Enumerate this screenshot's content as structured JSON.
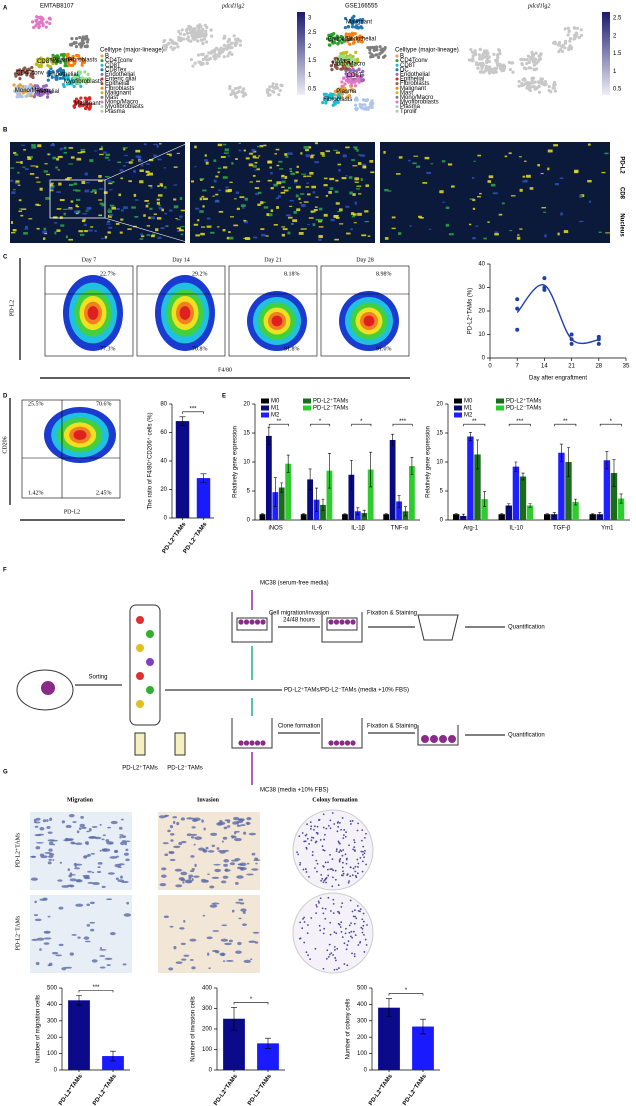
{
  "panels": {
    "letters": [
      "A",
      "B",
      "C",
      "D",
      "E",
      "F",
      "G"
    ]
  },
  "umap": [
    {
      "title": "EMTAB8107",
      "legend_title": "Celltype (major-lineage)",
      "legend_items": [
        "B",
        "CD4Tconv",
        "CD8T",
        "CD8Tex",
        "Endothelial",
        "Enteric glial",
        "Epithelial",
        "Fibroblasts",
        "Malignant",
        "Mast",
        "Mono/Macro",
        "Myofibroblasts",
        "Plasma"
      ],
      "cluster_labels": [
        "Mono/Macro",
        "Plasma",
        "Myofibroblasts",
        "Endothelial",
        "Epithelial",
        "Malignant",
        "CD4Tconv",
        "Fibroblasts",
        "CD8Tex"
      ]
    },
    {
      "title": "GSE166555",
      "legend_title": "Celltype (major-lineage)",
      "legend_items": [
        "B",
        "CD4Tconv",
        "CD8T",
        "DC",
        "Endothelial",
        "Epithelial",
        "Fibroblasts",
        "Malignant",
        "Mast",
        "Mono/Macro",
        "Myofibroblasts",
        "Plasma",
        "Tprolif"
      ],
      "cluster_labels": [
        "Plasma",
        "Epithelial",
        "Fibroblasts",
        "Malignant",
        "CD8T",
        "Mast",
        "Mono/Macro",
        "Endothelial"
      ]
    }
  ],
  "feature": [
    {
      "title": "pdcd1lg2",
      "colorbar_ticks": [
        3,
        2.5,
        2,
        1.5,
        1,
        0.5
      ]
    },
    {
      "title": "pdcd1lg2",
      "colorbar_ticks": [
        2.5,
        2,
        1.5,
        1,
        0.5
      ]
    }
  ],
  "if_channels": [
    "PD-L2",
    "CD8",
    "Nucleus"
  ],
  "flow_c": {
    "days": [
      "Day 7",
      "Day 14",
      "Day 21",
      "Day 28"
    ],
    "upper": [
      "22.7%",
      "29.2%",
      "8.18%",
      "8.98%"
    ],
    "lower": [
      "77.3%",
      "70.8%",
      "91.8%",
      "91.0%"
    ],
    "y_axis": "PD-L2",
    "x_axis": "F4/80"
  },
  "flow_d": {
    "quadrants": [
      "25.5%",
      "70.6%",
      "1.42%",
      "2.45%"
    ],
    "y_axis": "CD206",
    "x_axis": "PD-L2"
  },
  "schematic": {
    "sorting": "Sorting",
    "mix": "PD-L2⁺TAMs/PD-L2⁻TAMs (media +10% FBS)",
    "top_media": "MC38 (serum-free media)",
    "bottom_media": "MC38 (media +10% FBS)",
    "migration_step": [
      "Cell migration/invasion",
      "24/48 hours"
    ],
    "clone_step": "Clone formation",
    "fixation": [
      "Fixation & Staining",
      "Fixation & Staining"
    ],
    "quantification": [
      "Quantification",
      "Quantification"
    ],
    "tubes": [
      "PD-L2⁺TAMs",
      "PD-L2⁻TAMs"
    ]
  },
  "assay": {
    "columns": [
      "Migration",
      "Invasion",
      "Colony formation"
    ],
    "rows": [
      "PD-L2⁺TAMs",
      "PD-L2⁻TAMs"
    ]
  },
  "chart_data": [
    {
      "type": "scatter",
      "ylabel": "PD-L2⁺TAMs (%)",
      "xlabel": "Day after engraftment",
      "color": "#1f3fa8",
      "x": [
        7,
        7,
        7,
        14,
        14,
        14,
        21,
        21,
        21,
        28,
        28,
        28
      ],
      "values": [
        25,
        21,
        12,
        34,
        30,
        29,
        10,
        6,
        8,
        9,
        8,
        6
      ],
      "xlim": [
        0,
        35
      ],
      "xticks": [
        0,
        7,
        14,
        21,
        28,
        35
      ],
      "ylim": [
        0,
        40
      ],
      "yticks": [
        0,
        10,
        20,
        30,
        40
      ]
    },
    {
      "type": "bar",
      "ylabel": "The ratio of F4/80⁺CD206⁺ cells (%)",
      "categories": [
        "PD-L2⁺TAMs",
        "PD-L2⁻TAMs"
      ],
      "values": [
        68,
        28
      ],
      "errors": [
        3,
        3
      ],
      "colors": [
        "#0a0a8a",
        "#1a1aff"
      ],
      "significance": "***",
      "ylim": [
        0,
        80
      ],
      "yticks": [
        0,
        20,
        40,
        60,
        80
      ]
    },
    {
      "type": "grouped_bar",
      "ylabel": "Relatively gene expression",
      "categories": [
        "iNOS",
        "IL-6",
        "IL-1β",
        "TNF-α"
      ],
      "series": [
        {
          "name": "M0",
          "color": "#000000",
          "values": [
            1,
            1,
            1,
            1
          ],
          "errors": [
            0.1,
            0.1,
            0.1,
            0.1
          ]
        },
        {
          "name": "M1",
          "color": "#0a0a80",
          "values": [
            14.5,
            7,
            7.8,
            13.8
          ],
          "errors": [
            1.5,
            1.8,
            2.5,
            1
          ]
        },
        {
          "name": "M2",
          "color": "#1f1fff",
          "values": [
            4.8,
            3.5,
            1.5,
            3.2
          ],
          "errors": [
            2.5,
            2,
            0.6,
            1
          ]
        },
        {
          "name": "PD-L2⁺TAMs",
          "color": "#1a6b1a",
          "values": [
            5.6,
            2.6,
            1.2,
            1.5
          ],
          "errors": [
            0.8,
            1,
            0.5,
            0.8
          ]
        },
        {
          "name": "PD-L2⁻TAMs",
          "color": "#2ecc2e",
          "values": [
            9.7,
            8.5,
            8.7,
            9.3
          ],
          "errors": [
            1.5,
            3,
            3,
            1.5
          ]
        }
      ],
      "significance": [
        "**",
        "*",
        "*",
        "***"
      ],
      "ylim": [
        0,
        20
      ],
      "yticks": [
        0,
        5,
        10,
        15,
        20
      ]
    },
    {
      "type": "grouped_bar",
      "ylabel": "Relatively gene expression",
      "categories": [
        "Arg-1",
        "IL-10",
        "TGF-β",
        "Ym1"
      ],
      "series": [
        {
          "name": "M0",
          "color": "#000000",
          "values": [
            1,
            1,
            1,
            1
          ],
          "errors": [
            0.1,
            0.1,
            0.1,
            0.1
          ]
        },
        {
          "name": "M1",
          "color": "#0a0a80",
          "values": [
            0.7,
            2.5,
            1,
            1
          ],
          "errors": [
            0.3,
            0.3,
            0.3,
            0.3
          ]
        },
        {
          "name": "M2",
          "color": "#1f1fff",
          "values": [
            14.4,
            9.2,
            11.6,
            10.3
          ],
          "errors": [
            0.7,
            0.8,
            1.5,
            1.5
          ]
        },
        {
          "name": "PD-L2⁺TAMs",
          "color": "#1a6b1a",
          "values": [
            11.3,
            7.5,
            10,
            8.1
          ],
          "errors": [
            2.5,
            0.6,
            2.5,
            2.3
          ]
        },
        {
          "name": "PD-L2⁻TAMs",
          "color": "#2ecc2e",
          "values": [
            3.6,
            2.5,
            3.1,
            3.7
          ],
          "errors": [
            1.3,
            0.3,
            0.5,
            0.8
          ]
        }
      ],
      "significance": [
        "**",
        "***",
        "**",
        "*"
      ],
      "ylim": [
        0,
        20
      ],
      "yticks": [
        0,
        5,
        10,
        15,
        20
      ]
    },
    {
      "type": "bar",
      "ylabel": "Number of migration cells",
      "categories": [
        "PD-L2⁺TAMs",
        "PD-L2⁻TAMs"
      ],
      "values": [
        425,
        85
      ],
      "errors": [
        30,
        30
      ],
      "colors": [
        "#0a0a8a",
        "#1a1aff"
      ],
      "significance": "***",
      "ylim": [
        0,
        500
      ],
      "yticks": [
        0,
        100,
        200,
        300,
        400,
        500
      ]
    },
    {
      "type": "bar",
      "ylabel": "Number of invasion cells",
      "categories": [
        "PD-L2⁺TAMs",
        "PD-L2⁻TAMs"
      ],
      "values": [
        250,
        130
      ],
      "errors": [
        55,
        25
      ],
      "colors": [
        "#0a0a8a",
        "#1a1aff"
      ],
      "significance": "*",
      "ylim": [
        0,
        400
      ],
      "yticks": [
        0,
        100,
        200,
        300,
        400
      ]
    },
    {
      "type": "bar",
      "ylabel": "Number of colony cells",
      "categories": [
        "PD-L2⁺TAMs",
        "PD-L2⁻TAMs"
      ],
      "values": [
        380,
        265
      ],
      "errors": [
        55,
        45
      ],
      "colors": [
        "#0a0a8a",
        "#1a1aff"
      ],
      "significance": "*",
      "ylim": [
        0,
        500
      ],
      "yticks": [
        0,
        100,
        200,
        300,
        400,
        500
      ]
    }
  ]
}
